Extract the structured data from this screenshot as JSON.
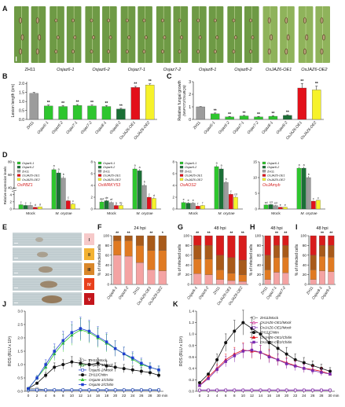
{
  "panel_letters": [
    "A",
    "B",
    "C",
    "D",
    "E",
    "F",
    "G",
    "H",
    "I",
    "J",
    "K"
  ],
  "panel_a": {
    "labels": [
      "ZH11",
      "Osjaz6-1",
      "Osjaz6-2",
      "Osjaz7-1",
      "Osjaz7-2",
      "Osjaz8-1",
      "Osjaz8-2",
      "OsJAZ6-OE1",
      "OsJAZ6-OE2"
    ]
  },
  "colors": {
    "gray": "#9c9c9c",
    "green": "#2ec62e",
    "darkgreen": "#1b6f36",
    "red": "#e3101a",
    "yellow": "#f6f22a",
    "sig": "#111111",
    "stage1": "#f4a3a3",
    "stage2": "#e07a22",
    "stage3": "#a85a1a",
    "stage4": "#d81c1c"
  },
  "genotypes": [
    "ZH11",
    "Osjaz6-1",
    "Osjaz6-2",
    "Osjaz7-1",
    "Osjaz7-2",
    "Osjaz8-1",
    "Osjaz8-2",
    "OsJAZ6-OE1",
    "OsJAZ6-OE2"
  ],
  "chart_data": [
    {
      "id": "B",
      "type": "bar",
      "categories": [
        "ZH11",
        "Osjaz6-1",
        "Osjaz6-2",
        "Osjaz7-1",
        "Osjaz7-2",
        "Osjaz8-1",
        "Osjaz8-2",
        "OsJAZ6-OE1",
        "OsJAZ6-OE2"
      ],
      "values": [
        1.45,
        0.75,
        0.72,
        0.78,
        0.75,
        0.72,
        0.58,
        1.78,
        1.92
      ],
      "errors": [
        0.05,
        0.05,
        0.05,
        0.05,
        0.05,
        0.05,
        0.04,
        0.06,
        0.06
      ],
      "marks": [
        "",
        "**",
        "**",
        "**",
        "**",
        "**",
        "**",
        "**",
        "**"
      ],
      "ylabel": "Lesion length (cm)",
      "yticks": [
        0.0,
        0.5,
        1.0,
        1.5,
        2.0
      ],
      "ylim": [
        0,
        2.1
      ]
    },
    {
      "id": "C",
      "type": "bar",
      "categories": [
        "ZH11",
        "Osjaz6-1",
        "Osjaz6-2",
        "Osjaz7-1",
        "Osjaz7-2",
        "Osjaz8-1",
        "Osjaz8-2",
        "OsJAZ6-OE1",
        "OsJAZ6-OE2"
      ],
      "values": [
        1.0,
        0.45,
        0.2,
        0.28,
        0.2,
        0.25,
        0.32,
        2.5,
        2.35
      ],
      "errors": [
        0.02,
        0.06,
        0.03,
        0.04,
        0.03,
        0.04,
        0.05,
        0.35,
        0.3
      ],
      "marks": [
        "",
        "**",
        "**",
        "**",
        "**",
        "**",
        "**",
        "**",
        "**"
      ],
      "ylabel": "Relative fungal growth",
      "ylabel2": "(MoPOT2/OsUBQ5)",
      "yticks": [
        0,
        1,
        2,
        3
      ],
      "ylim": [
        0,
        3
      ]
    },
    {
      "id": "D",
      "type": "grouped-bar",
      "ylabel": "Relative expression levels",
      "series_names": [
        "Osjaz6-1",
        "Osjaz6-2",
        "ZH11",
        "OsJAZ6-OE1",
        "OsJAZ6-OE2"
      ],
      "conditions": [
        "Mock",
        "M. oryzae"
      ],
      "subplots": [
        {
          "gene": "OsPBZ1",
          "values": [
            [
              1.2,
              1.0,
              1.0,
              0.5,
              0.6
            ],
            [
              68.0,
              63.0,
              55.0,
              20.0,
              15.0
            ]
          ],
          "errors": [
            [
              0.2,
              0.2,
              0.2,
              0.1,
              0.1
            ],
            [
              3,
              3,
              3,
              2,
              2
            ]
          ],
          "letters": [
            [
              "c",
              "c",
              "c",
              "d",
              "d"
            ],
            [
              "a",
              "a",
              "b",
              "c",
              "c"
            ]
          ],
          "yticks": [
            0,
            2,
            4,
            40,
            60,
            80
          ]
        },
        {
          "gene": "OsWRKY53",
          "values": [
            [
              1.2,
              1.4,
              1.1,
              0.6,
              0.6
            ],
            [
              6.8,
              6.5,
              4.0,
              2.0,
              1.8
            ]
          ],
          "errors": [
            [
              0.2,
              0.2,
              0.2,
              0.1,
              0.1
            ],
            [
              0.3,
              0.3,
              0.3,
              0.2,
              0.2
            ]
          ],
          "letters": [
            [
              "def",
              "de",
              "ef",
              "g",
              "fg"
            ],
            [
              "a",
              "a",
              "b",
              "c",
              "d"
            ]
          ],
          "yticks": [
            0,
            2,
            4,
            6,
            8
          ]
        },
        {
          "gene": "OsAOS2",
          "values": [
            [
              1.1,
              1.0,
              1.0,
              0.5,
              0.6
            ],
            [
              7.2,
              6.8,
              4.5,
              2.5,
              2.0
            ]
          ],
          "errors": [
            [
              0.2,
              0.2,
              0.2,
              0.1,
              0.1
            ],
            [
              0.3,
              0.3,
              0.3,
              0.2,
              0.2
            ]
          ],
          "letters": [
            [
              "e",
              "e",
              "e",
              "f",
              "f"
            ],
            [
              "a",
              "a",
              "b",
              "c",
              "cd"
            ]
          ],
          "yticks": [
            0,
            2,
            4,
            6,
            8
          ]
        },
        {
          "gene": "OsJAmyb",
          "values": [
            [
              1.3,
              1.4,
              1.1,
              0.6,
              0.6
            ],
            [
              13.0,
              13.0,
              10.0,
              2.5,
              2.8
            ]
          ],
          "errors": [
            [
              0.2,
              0.2,
              0.2,
              0.1,
              0.1
            ],
            [
              0.5,
              0.5,
              0.5,
              0.2,
              0.2
            ]
          ],
          "letters": [
            [
              "cd",
              "cd",
              "cd",
              "e",
              "e"
            ],
            [
              "a",
              "a",
              "b",
              "c",
              "c"
            ]
          ],
          "yticks": [
            0,
            5,
            10,
            15
          ]
        }
      ]
    },
    {
      "id": "F",
      "type": "stacked-bar",
      "title": "24 hpi",
      "categories": [
        "Osjaz6-1",
        "Osjaz6-2",
        "ZH11",
        "OsJAZ6-OE1",
        "OsJAZ6-OE2"
      ],
      "stack": [
        [
          60,
          30,
          10,
          0
        ],
        [
          58,
          32,
          10,
          0
        ],
        [
          45,
          35,
          20,
          0
        ],
        [
          30,
          40,
          30,
          0
        ],
        [
          28,
          42,
          30,
          0
        ]
      ],
      "marks": [
        "**",
        "**",
        "",
        "**",
        "*"
      ],
      "ylabel": "% of infected cells",
      "yticks": [
        0,
        20,
        40,
        60,
        80,
        100
      ]
    },
    {
      "id": "G",
      "type": "stacked-bar",
      "title": "48 hpi",
      "categories": [
        "Osjaz6-1",
        "Osjaz6-2",
        "ZH11",
        "OsJAZ6-OE1",
        "OsJAZ6-OE2"
      ],
      "stack": [
        [
          22,
          30,
          28,
          20
        ],
        [
          20,
          32,
          28,
          20
        ],
        [
          10,
          20,
          30,
          40
        ],
        [
          8,
          15,
          32,
          45
        ],
        [
          6,
          14,
          30,
          50
        ]
      ],
      "marks": [
        "**",
        "**",
        "",
        "**",
        "**"
      ],
      "ylabel": "% of infected cells",
      "yticks": [
        0,
        20,
        40,
        60,
        80,
        100
      ]
    },
    {
      "id": "H",
      "type": "stacked-bar",
      "title": "48 hpi",
      "categories": [
        "ZH11",
        "Osjaz7-1",
        "Osjaz7-2"
      ],
      "stack": [
        [
          10,
          20,
          30,
          40
        ],
        [
          25,
          30,
          25,
          20
        ],
        [
          24,
          32,
          24,
          20
        ]
      ],
      "marks": [
        "",
        "**",
        "**"
      ],
      "ylabel": "% of infected cells",
      "yticks": [
        0,
        20,
        40,
        60,
        80,
        100
      ]
    },
    {
      "id": "I",
      "type": "stacked-bar",
      "title": "48 hpi",
      "categories": [
        "ZH11",
        "Osjaz8-1",
        "Osjaz8-2"
      ],
      "stack": [
        [
          10,
          20,
          30,
          40
        ],
        [
          28,
          30,
          22,
          20
        ],
        [
          26,
          30,
          24,
          20
        ]
      ],
      "marks": [
        "",
        "**",
        "**"
      ],
      "ylabel": "% of infected cells",
      "yticks": [
        0,
        20,
        40,
        60,
        80,
        100
      ]
    },
    {
      "id": "J",
      "type": "line",
      "x": [
        0,
        2,
        4,
        6,
        8,
        10,
        12,
        14,
        16,
        18,
        20,
        22,
        24,
        26,
        28,
        30
      ],
      "xunit": "min",
      "ylabel": "ROS (RLU x 10³)",
      "yticks": [
        0.0,
        0.5,
        1.0,
        1.5,
        2.0,
        2.5,
        3.0
      ],
      "ylim": [
        0,
        3.0
      ],
      "series": [
        {
          "name": "ZH11/Mock",
          "color": "#888888",
          "marker": "circle-open",
          "values": [
            0.1,
            0.1,
            0.05,
            0.05,
            0.05,
            0.05,
            0.05,
            0.05,
            0.05,
            0.05,
            0.05,
            0.05,
            0.05,
            0.05,
            0.05,
            0.05
          ]
        },
        {
          "name": "Osjaz6-1/Mock",
          "color": "#2a8a2a",
          "marker": "triangle-open",
          "values": [
            0.05,
            0.05,
            0.05,
            0.05,
            0.05,
            0.05,
            0.05,
            0.05,
            0.05,
            0.05,
            0.05,
            0.05,
            0.05,
            0.05,
            0.05,
            0.05
          ]
        },
        {
          "name": "Osjaz6-2/Mock",
          "color": "#1f3fd0",
          "marker": "square-open",
          "values": [
            0.05,
            0.05,
            0.05,
            0.05,
            0.05,
            0.05,
            0.05,
            0.05,
            0.05,
            0.05,
            0.05,
            0.05,
            0.05,
            0.05,
            0.05,
            0.05
          ]
        },
        {
          "name": "ZH11/Chitin",
          "color": "#111111",
          "marker": "circle",
          "values": [
            0.1,
            0.3,
            0.6,
            0.9,
            1.0,
            1.1,
            1.05,
            1.0,
            1.05,
            0.95,
            0.9,
            0.85,
            0.8,
            0.75,
            0.7,
            0.6
          ]
        },
        {
          "name": "Osjaz6-1/Chitin",
          "color": "#2ec62e",
          "marker": "triangle",
          "values": [
            0.1,
            0.5,
            0.9,
            1.4,
            1.8,
            2.1,
            2.3,
            2.2,
            2.0,
            1.8,
            1.6,
            1.4,
            1.2,
            1.0,
            0.9,
            0.8
          ]
        },
        {
          "name": "Osjaz6-2/Chitin",
          "color": "#1f3fd0",
          "marker": "square",
          "values": [
            0.1,
            0.5,
            1.0,
            1.5,
            1.9,
            2.2,
            2.35,
            2.25,
            2.05,
            1.85,
            1.6,
            1.4,
            1.25,
            1.05,
            0.9,
            0.8
          ]
        }
      ]
    },
    {
      "id": "K",
      "type": "line",
      "x": [
        0,
        2,
        4,
        6,
        8,
        10,
        12,
        14,
        16,
        18,
        20,
        22,
        24,
        26,
        28,
        30
      ],
      "xunit": "min",
      "ylabel": "ROS (RLU x 10³)",
      "yticks": [
        0.0,
        0.2,
        0.4,
        0.6,
        0.8,
        1.0,
        1.2,
        1.4
      ],
      "ylim": [
        0,
        1.4
      ],
      "series": [
        {
          "name": "ZH11/Mock",
          "color": "#888888",
          "marker": "circle-open",
          "values": [
            0.02,
            0.02,
            0.02,
            0.02,
            0.02,
            0.02,
            0.02,
            0.02,
            0.02,
            0.02,
            0.02,
            0.02,
            0.02,
            0.02,
            0.02,
            0.02
          ]
        },
        {
          "name": "OsJAZ6-OE1/Mock",
          "color": "#d02090",
          "marker": "triangle-open",
          "values": [
            0.02,
            0.02,
            0.02,
            0.02,
            0.02,
            0.02,
            0.02,
            0.02,
            0.02,
            0.02,
            0.02,
            0.02,
            0.02,
            0.02,
            0.02,
            0.02
          ]
        },
        {
          "name": "OsJAZ6-OE2/Mock",
          "color": "#7a2ab0",
          "marker": "square-open",
          "values": [
            0.02,
            0.02,
            0.02,
            0.02,
            0.02,
            0.02,
            0.02,
            0.02,
            0.02,
            0.02,
            0.02,
            0.02,
            0.02,
            0.02,
            0.02,
            0.02
          ]
        },
        {
          "name": "ZH11/Chitin",
          "color": "#111111",
          "marker": "circle",
          "values": [
            0.15,
            0.3,
            0.55,
            0.85,
            1.05,
            1.2,
            1.1,
            1.0,
            0.85,
            0.75,
            0.65,
            0.55,
            0.5,
            0.45,
            0.4,
            0.35
          ]
        },
        {
          "name": "OsJAZ6-OE1/Chitin",
          "color": "#e3101a",
          "marker": "triangle",
          "values": [
            0.1,
            0.25,
            0.4,
            0.55,
            0.65,
            0.72,
            0.7,
            0.68,
            0.62,
            0.55,
            0.5,
            0.45,
            0.4,
            0.38,
            0.35,
            0.3
          ]
        },
        {
          "name": "OsJAZ6-OE2/Chitin",
          "color": "#7a2ab0",
          "marker": "square",
          "values": [
            0.1,
            0.22,
            0.38,
            0.52,
            0.62,
            0.7,
            0.72,
            0.68,
            0.6,
            0.55,
            0.48,
            0.44,
            0.4,
            0.36,
            0.33,
            0.3
          ]
        }
      ]
    }
  ],
  "panel_e": {
    "stages": [
      "I",
      "II",
      "III",
      "IV",
      "V"
    ],
    "stage_colors": [
      "#f6c9c9",
      "#f3b232",
      "#d9872a",
      "#e8401c",
      "#c4161c"
    ]
  }
}
